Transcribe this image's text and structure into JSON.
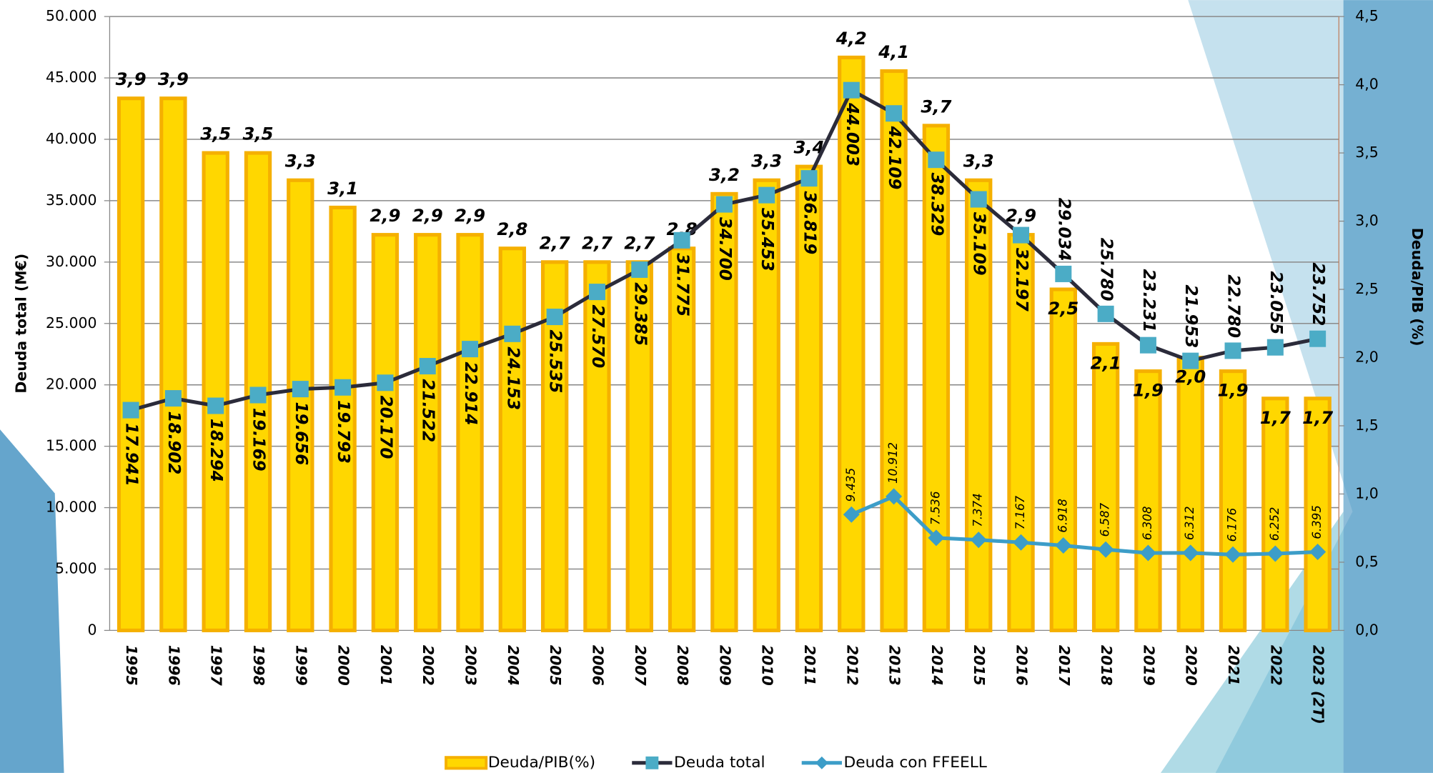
{
  "chart_data": {
    "type": "bar-line",
    "categories": [
      "1995",
      "1996",
      "1997",
      "1998",
      "1999",
      "2000",
      "2001",
      "2002",
      "2003",
      "2004",
      "2005",
      "2006",
      "2007",
      "2008",
      "2009",
      "2010",
      "2011",
      "2012",
      "2013",
      "2014",
      "2015",
      "2016",
      "2017",
      "2018",
      "2019",
      "2020",
      "2021",
      "2022",
      "2023 (2T)"
    ],
    "series": [
      {
        "name": "Deuda/PIB(%)",
        "type": "bar",
        "axis": "y2",
        "color": "#ffd700",
        "values": [
          3.9,
          3.9,
          3.5,
          3.5,
          3.3,
          3.1,
          2.9,
          2.9,
          2.9,
          2.8,
          2.7,
          2.7,
          2.7,
          2.8,
          3.2,
          3.3,
          3.4,
          4.2,
          4.1,
          3.7,
          3.3,
          2.9,
          2.5,
          2.1,
          1.9,
          2.0,
          1.9,
          1.7,
          1.7
        ],
        "value_labels": [
          "3,9",
          "3,9",
          "3,5",
          "3,5",
          "3,3",
          "3,1",
          "2,9",
          "2,9",
          "2,9",
          "2,8",
          "2,7",
          "2,7",
          "2,7",
          "2,8",
          "3,2",
          "3,3",
          "3,4",
          "4,2",
          "4,1",
          "3,7",
          "3,3",
          "2,9",
          "2,5",
          "2,1",
          "1,9",
          "2,0",
          "1,9",
          "1,7",
          "1,7"
        ]
      },
      {
        "name": "Deuda total",
        "type": "line",
        "color": "#2b2b3a",
        "values": [
          17941,
          18902,
          18294,
          19169,
          19656,
          19793,
          20170,
          21522,
          22914,
          24153,
          25535,
          27570,
          29385,
          31775,
          34700,
          35453,
          36819,
          44003,
          42109,
          38329,
          35109,
          32197,
          29034,
          25780,
          23231,
          21953,
          22780,
          23055,
          23752
        ],
        "value_labels": [
          "17.941",
          "18.902",
          "18.294",
          "19.169",
          "19.656",
          "19.793",
          "20.170",
          "21.522",
          "22.914",
          "24.153",
          "25.535",
          "27.570",
          "29.385",
          "31.775",
          "34.700",
          "35.453",
          "36.819",
          "44.003",
          "42.109",
          "38.329",
          "35.109",
          "32.197",
          "29.034",
          "25.780",
          "23.231",
          "21.953",
          "22.780",
          "23.055",
          "23.752"
        ]
      },
      {
        "name": "Deuda con FFEELL",
        "type": "line",
        "color": "#3c9dc8",
        "values": [
          null,
          null,
          null,
          null,
          null,
          null,
          null,
          null,
          null,
          null,
          null,
          null,
          null,
          null,
          null,
          null,
          null,
          9435,
          10912,
          7536,
          7374,
          7167,
          6918,
          6587,
          6308,
          6312,
          6176,
          6252,
          6395
        ],
        "value_labels": [
          null,
          null,
          null,
          null,
          null,
          null,
          null,
          null,
          null,
          null,
          null,
          null,
          null,
          null,
          null,
          null,
          null,
          "9.435",
          "10.912",
          "7.536",
          "7.374",
          "7.167",
          "6.918",
          "6.587",
          "6.308",
          "6.312",
          "6.176",
          "6.252",
          "6.395"
        ]
      }
    ],
    "ylabel": "Deuda total (M€)",
    "y2label": "Deuda/PIB (%)",
    "ylim": [
      0,
      50000
    ],
    "yticks": [
      0,
      {
        "value": 5000,
        "label": "5.000"
      },
      {
        "value": 10000,
        "label": "10.000"
      },
      {
        "value": 15000,
        "label": "15.000"
      },
      {
        "value": 20000,
        "label": "20.000"
      },
      {
        "value": 25000,
        "label": "25.000"
      },
      {
        "value": 30000,
        "label": "30.000"
      },
      {
        "value": 35000,
        "label": "35.000"
      },
      {
        "value": 40000,
        "label": "40.000"
      },
      {
        "value": 45000,
        "label": "45.000"
      },
      {
        "value": 50000,
        "label": "50.000"
      }
    ],
    "y2lim": [
      0,
      4.5
    ],
    "y2ticks": [
      {
        "value": 0,
        "label": "0,0"
      },
      {
        "value": 0.5,
        "label": "0,5"
      },
      {
        "value": 1,
        "label": "1,0"
      },
      {
        "value": 1.5,
        "label": "1,5"
      },
      {
        "value": 2,
        "label": "2,0"
      },
      {
        "value": 2.5,
        "label": "2,5"
      },
      {
        "value": 3,
        "label": "3,0"
      },
      {
        "value": 3.5,
        "label": "3,5"
      },
      {
        "value": 4,
        "label": "4,0"
      },
      {
        "value": 4.5,
        "label": "4,5"
      }
    ],
    "grid": true,
    "legend": "bottom"
  }
}
